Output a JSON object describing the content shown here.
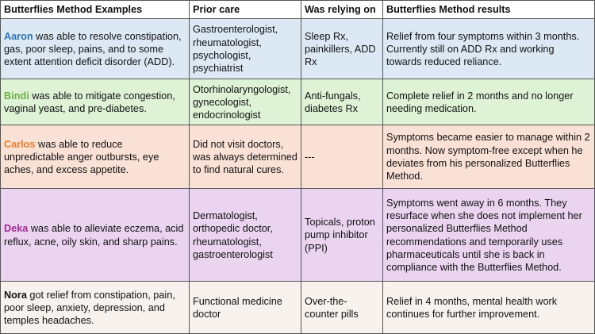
{
  "headers": [
    "Butterflies Method Examples",
    "Prior care",
    "Was relying on",
    "Butterflies Method results"
  ],
  "rows": [
    {
      "name": "Aaron",
      "name_color": "#2e75b6",
      "example": " was able to resolve constipation, gas, poor sleep, pains, and to some extent attention deficit disorder (ADD).",
      "prior_care": "Gastroenterologist, rheumatologist, psychologist, psychiatrist",
      "relying_on": "Sleep Rx, painkillers, ADD Rx",
      "results": "Relief from four symptoms within 3 months. Currently still on ADD Rx and working towards reduced reliance.",
      "row_color": "#dde8f5"
    },
    {
      "name": "Bindi",
      "name_color": "#70ad47",
      "example": " was able to mitigate congestion, vaginal yeast, and pre-diabetes.",
      "prior_care": "Otorhinolaryngologist, gynecologist, endocrinologist",
      "relying_on": "Anti-fungals, diabetes Rx",
      "results": "Complete relief in 2 months and no longer needing medication.",
      "row_color": "#def2d6"
    },
    {
      "name": "Carlos",
      "name_color": "#ed7d31",
      "example": " was able to reduce unpredictable anger outbursts, eye aches, and excess appetite.",
      "prior_care": "Did not visit doctors, was always determined to find natural cures.",
      "relying_on": "---",
      "results": "Symptoms became easier to manage within 2 months. Now symptom-free except when he deviates from his personalized Butterflies Method.",
      "row_color": "#fae1d6"
    },
    {
      "name": "Deka",
      "name_color": "#a02b93",
      "example": " was able to alleviate eczema, acid reflux, acne, oily skin, and sharp pains.",
      "prior_care": "Dermatologist, orthopedic doctor, rheumatologist, gastroenterologist",
      "relying_on": "Topicals, proton pump inhibitor (PPI)",
      "results": "Symptoms went away in 6 months. They resurface when she does not implement her personalized Butterflies Method recommendations and temporarily uses pharmaceuticals until she is back in compliance with the Butterflies Method.",
      "row_color": "#ead4ef"
    },
    {
      "name": "Nora",
      "name_color": "#111111",
      "example": " got relief from constipation, pain, poor sleep, anxiety, depression, and temples headaches.",
      "prior_care": "Functional medicine doctor",
      "relying_on": "Over-the-counter pills",
      "results": "Relief in 4 months, mental health work continues for further improvement.",
      "row_color": "#f7f2ee"
    }
  ]
}
